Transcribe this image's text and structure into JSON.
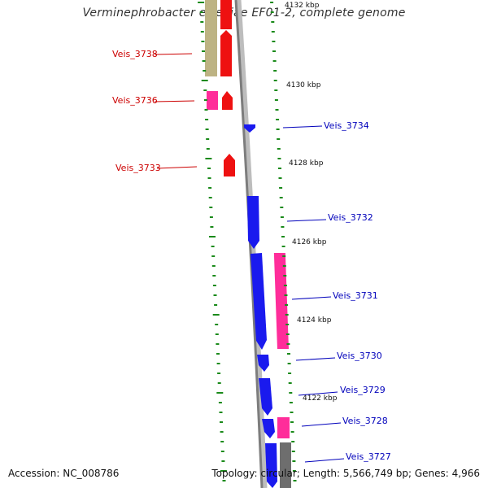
{
  "title": "Verminephrobacter eiseniae EF01-2, complete genome",
  "footer": {
    "accession": "Accession: NC_008786",
    "summary": "Topology: circular; Length: 5,566,749 bp; Genes: 4,966"
  },
  "colors": {
    "red": "#ee1111",
    "blue": "#1a1aee",
    "magenta": "#ff2d9a",
    "olive": "#bdb383",
    "gray": "#6e6e6e",
    "tick": "#1a8a1a",
    "backbone": "#8a8a8a",
    "label_red": "#cc0000",
    "label_blue": "#0000bb"
  },
  "kbp_labels": [
    "4132 kbp",
    "4130 kbp",
    "4128 kbp",
    "4126 kbp",
    "4124 kbp",
    "4122 kbp"
  ],
  "left_genes": [
    {
      "name": "Veis_3738"
    },
    {
      "name": "Veis_3736"
    },
    {
      "name": "Veis_3733"
    }
  ],
  "right_genes": [
    {
      "name": "Veis_3734"
    },
    {
      "name": "Veis_3732"
    },
    {
      "name": "Veis_3731"
    },
    {
      "name": "Veis_3730"
    },
    {
      "name": "Veis_3729"
    },
    {
      "name": "Veis_3728"
    },
    {
      "name": "Veis_3727"
    }
  ]
}
